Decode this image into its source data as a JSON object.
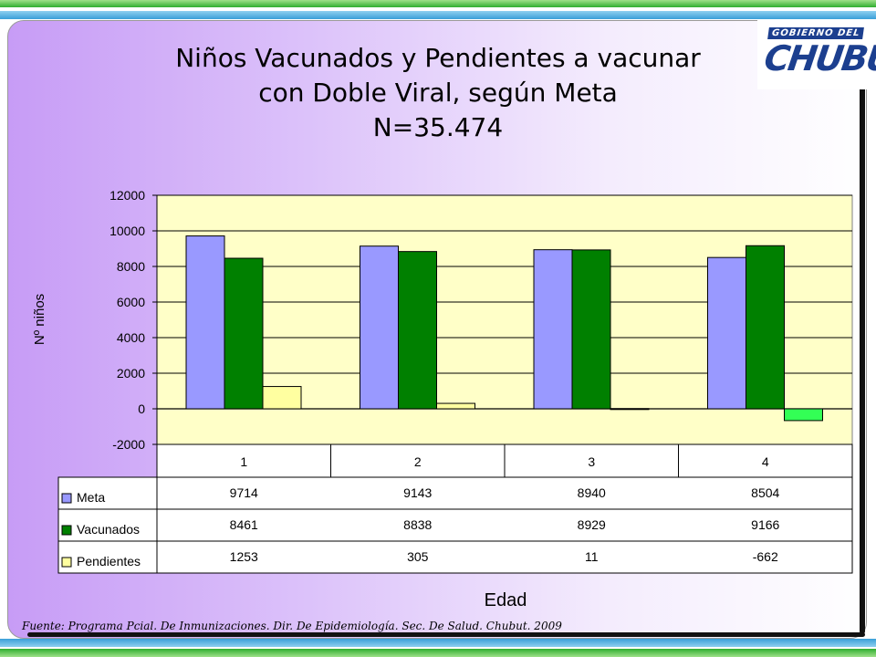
{
  "logo": {
    "top_text": "GOBIERNO DEL",
    "main_text": "CHUBUT"
  },
  "title_lines": [
    "Niños Vacunados y Pendientes a vacunar",
    "con Doble Viral, según Meta",
    "N=35.474"
  ],
  "source": "Fuente: Programa Pcial. De Inmunizaciones. Dir. De Epidemiología. Sec. De Salud. Chubut. 2009",
  "chart_data": {
    "type": "bar",
    "title": "Niños Vacunados y Pendientes a vacunar con Doble Viral, según Meta N=35.474",
    "categories": [
      "1",
      "2",
      "3",
      "4"
    ],
    "xlabel": "Edad",
    "ylabel": "Nº niños",
    "ylim": [
      -2000,
      12000
    ],
    "yticks": [
      12000,
      10000,
      8000,
      6000,
      4000,
      2000,
      0,
      -2000
    ],
    "grid": true,
    "legend": "data-table",
    "series": [
      {
        "name": "Meta",
        "color": "#9999ff",
        "values": [
          9714,
          9143,
          8940,
          8504
        ]
      },
      {
        "name": "Vacunados",
        "color": "#008000",
        "values": [
          8461,
          8838,
          8929,
          9166
        ]
      },
      {
        "name": "Pendientes",
        "color": "#ffffa0",
        "negative_color": "#33ff55",
        "values": [
          1253,
          305,
          11,
          -662
        ]
      }
    ]
  }
}
